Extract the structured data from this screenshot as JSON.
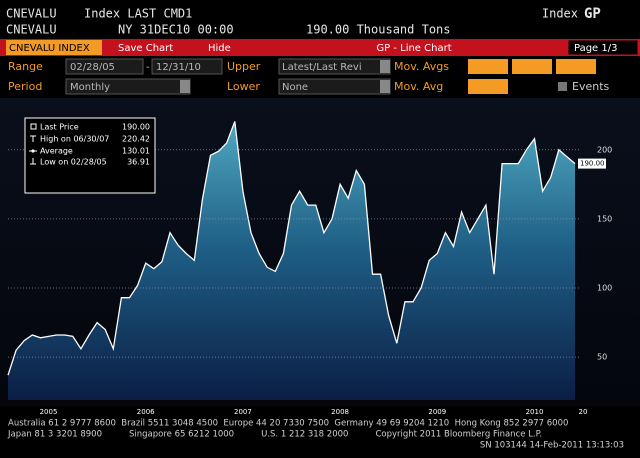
{
  "header": {
    "security": "CNEVALU",
    "descriptor": "Index LAST CMD1",
    "right_a": "Index",
    "right_b": "GP",
    "security2": "CNEVALU",
    "time": "NY 31DEC10 00:00",
    "last": "190.00 Thousand Tons"
  },
  "toolbar": {
    "ticker": "CNEVALU INDEX",
    "save": "Save Chart",
    "hide": "Hide",
    "title": "GP - Line Chart",
    "page": "Page 1/3"
  },
  "controls": {
    "range_label": "Range",
    "start": "02/28/05",
    "dash": "-",
    "end": "12/31/10",
    "upper_label": "Upper",
    "upper": "Latest/Last Revi",
    "mov_avgs_label": "Mov. Avgs",
    "period_label": "Period",
    "period": "Monthly",
    "lower_label": "Lower",
    "lower": "None",
    "mov_avg_label": "Mov. Avg",
    "events_label": "Events"
  },
  "chart_data": {
    "type": "area",
    "categories": [
      null,
      null,
      null,
      null,
      null,
      "2005",
      null,
      null,
      null,
      null,
      null,
      null,
      null,
      null,
      null,
      null,
      null,
      "2006",
      null,
      null,
      null,
      null,
      null,
      null,
      null,
      null,
      null,
      null,
      null,
      "2007",
      null,
      null,
      null,
      null,
      null,
      null,
      null,
      null,
      null,
      null,
      null,
      "2008",
      null,
      null,
      null,
      null,
      null,
      null,
      null,
      null,
      null,
      null,
      null,
      "2009",
      null,
      null,
      null,
      null,
      null,
      null,
      null,
      null,
      null,
      null,
      null,
      "2010",
      null,
      null,
      null,
      null,
      null
    ],
    "x_edge_label": "20",
    "series": [
      {
        "name": "Last Price",
        "color": "#ffffff",
        "values": [
          36.91,
          55,
          62,
          66,
          64,
          65,
          66,
          66,
          65,
          56,
          66,
          75,
          70,
          56,
          93,
          93,
          102,
          118,
          114,
          119,
          140,
          131,
          125,
          120,
          164,
          196,
          199,
          205,
          220.42,
          170,
          140,
          125,
          115,
          112,
          125,
          160,
          170,
          160,
          160,
          140,
          150,
          175,
          165,
          185,
          175,
          110,
          110,
          80,
          60,
          90,
          90,
          100,
          120,
          125,
          140,
          130,
          155,
          140,
          150,
          160,
          110,
          190,
          190,
          190,
          200,
          208,
          170,
          180,
          200,
          195,
          190
        ]
      }
    ],
    "ylim": [
      19,
      236
    ],
    "yticks": [
      50,
      100,
      150,
      200
    ],
    "grid": true,
    "legend": [
      {
        "name": "Last Price",
        "value": 190,
        "label": "190.00"
      },
      {
        "name": "High on 06/30/07",
        "value": 220.42,
        "label": "220.42"
      },
      {
        "name": "Average",
        "value": 130.01,
        "label": "130.01"
      },
      {
        "name": "Low on 02/28/05",
        "value": 36.91,
        "label": "36.91"
      }
    ]
  },
  "footer": {
    "line1": "Australia 61 2 9777 8600  Brazil 5511 3048 4500  Europe 44 20 7330 7500  Germany 49 69 9204 1210  Hong Kong 852 2977 6000",
    "line2": "Japan 81 3 3201 8900          Singapore 65 6212 1000          U.S. 1 212 318 2000          Copyright 2011 Bloomberg Finance L.P.",
    "line3": "SN 103144 14-Feb-2011 13:13:03"
  }
}
